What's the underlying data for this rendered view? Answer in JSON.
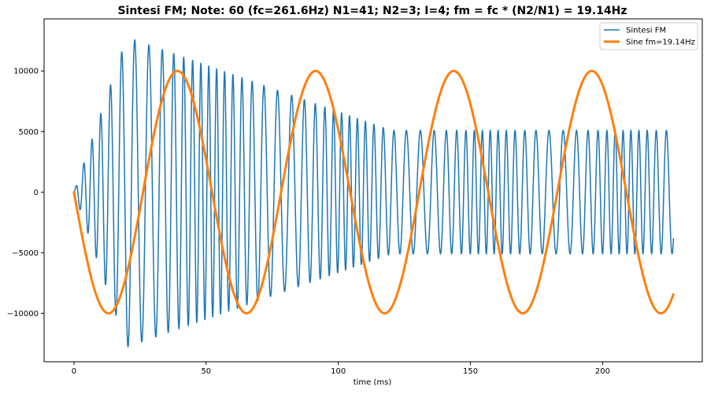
{
  "chart_data": {
    "type": "line",
    "title": "Sintesi FM; Note: 60 (fc=261.6Hz) N1=41; N2=3; I=4; fm = fc * (N2/N1) = 19.14Hz",
    "xlabel": "time (ms)",
    "ylabel": "",
    "xlim": [
      -11.3,
      237.7
    ],
    "ylim": [
      -14000,
      14300
    ],
    "x_ticks": [
      0,
      50,
      100,
      150,
      200
    ],
    "x_tick_labels": [
      "0",
      "50",
      "100",
      "150",
      "200"
    ],
    "y_ticks": [
      -10000,
      -5000,
      0,
      5000,
      10000
    ],
    "y_tick_labels": [
      "−10000",
      "−5000",
      "0",
      "5000",
      "10000"
    ],
    "grid": false,
    "legend_position": "top-right",
    "series": [
      {
        "name": "Sintesi FM",
        "color": "#1f77b4",
        "kind": "fm",
        "carrier_hz": 261.6,
        "modulator_hz": 19.14,
        "index": 4,
        "duration_ms": 226.8,
        "envelope": {
          "t": [
            0,
            20,
            120,
            226.8
          ],
          "amp": [
            0,
            12800,
            5100,
            5100
          ]
        }
      },
      {
        "name": "Sine fm=19.14Hz",
        "color": "#ff7f0e",
        "kind": "sine",
        "frequency_hz": 19.14,
        "amplitude": 10000,
        "phase": "-sin",
        "duration_ms": 226.8
      }
    ]
  }
}
